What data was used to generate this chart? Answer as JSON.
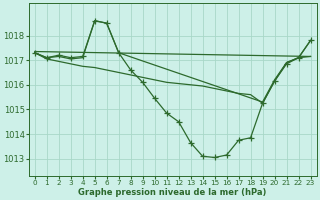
{
  "title": "Graphe pression niveau de la mer (hPa)",
  "bg_color": "#cdf0e8",
  "grid_color": "#a8d8c8",
  "line_color": "#2d6a2d",
  "xlim": [
    -0.5,
    23.5
  ],
  "ylim": [
    1012.3,
    1019.3
  ],
  "yticks": [
    1013,
    1014,
    1015,
    1016,
    1017,
    1018
  ],
  "xticks": [
    0,
    1,
    2,
    3,
    4,
    5,
    6,
    7,
    8,
    9,
    10,
    11,
    12,
    13,
    14,
    15,
    16,
    17,
    18,
    19,
    20,
    21,
    22,
    23
  ],
  "series": [
    {
      "x": [
        0,
        1,
        2,
        3,
        4,
        5,
        6,
        7,
        8,
        9,
        10,
        11,
        12,
        13,
        14,
        15,
        16,
        17,
        18,
        19,
        20,
        21,
        22,
        23
      ],
      "y": [
        1017.3,
        1017.1,
        1017.2,
        1017.1,
        1017.15,
        1018.6,
        1018.5,
        1017.3,
        1016.6,
        1016.1,
        1015.45,
        1014.85,
        1014.5,
        1013.65,
        1013.1,
        1013.05,
        1013.15,
        1013.75,
        1013.85,
        1015.25,
        1016.15,
        1016.85,
        1017.1,
        1017.8
      ],
      "has_markers": true
    },
    {
      "x": [
        0,
        23
      ],
      "y": [
        1017.35,
        1017.15
      ],
      "has_markers": false
    },
    {
      "x": [
        0,
        1,
        2,
        3,
        4,
        5,
        6,
        7,
        19,
        20,
        21,
        22,
        23
      ],
      "y": [
        1017.3,
        1017.1,
        1017.15,
        1017.05,
        1017.1,
        1018.6,
        1018.5,
        1017.3,
        1015.3,
        1016.2,
        1016.9,
        1017.1,
        1017.8
      ],
      "has_markers": false
    },
    {
      "x": [
        0,
        1,
        2,
        3,
        4,
        5,
        6,
        7,
        8,
        9,
        10,
        11,
        12,
        13,
        14,
        15,
        16,
        17,
        18,
        19,
        20,
        21,
        22,
        23
      ],
      "y": [
        1017.3,
        1017.05,
        1016.95,
        1016.85,
        1016.75,
        1016.7,
        1016.6,
        1016.5,
        1016.4,
        1016.3,
        1016.2,
        1016.1,
        1016.05,
        1016.0,
        1015.95,
        1015.85,
        1015.75,
        1015.65,
        1015.6,
        1015.25,
        1016.15,
        1016.9,
        1017.1,
        1017.15
      ],
      "has_markers": false
    }
  ]
}
